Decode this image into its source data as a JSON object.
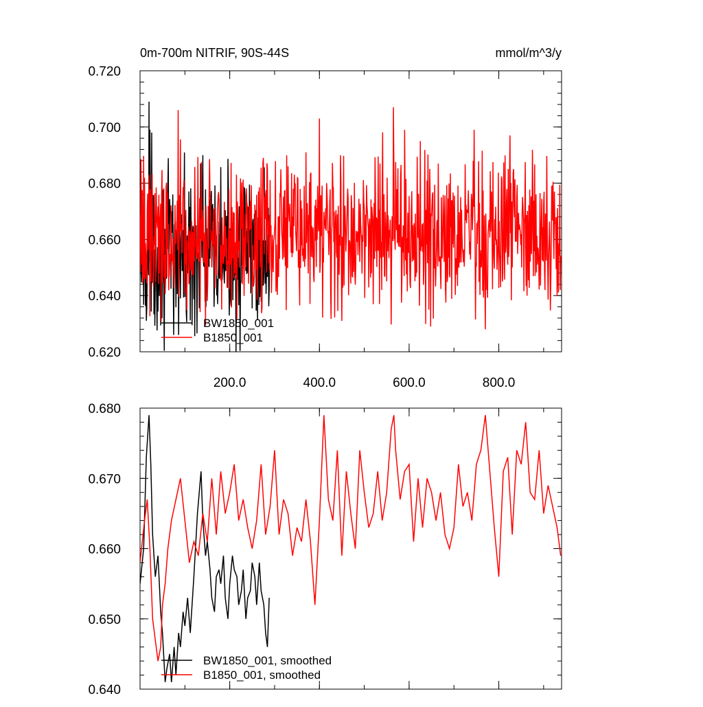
{
  "chart_data": [
    {
      "type": "line",
      "title": "0m-700m NITRIF, 90S-44S",
      "units": "mmol/m^3/y",
      "xlim": [
        0,
        940
      ],
      "ylim": [
        0.62,
        0.72
      ],
      "x_tick_labels": [
        "200.0",
        "400.0",
        "600.0",
        "800.0"
      ],
      "y_tick_labels": [
        "0.620",
        "0.640",
        "0.660",
        "0.680",
        "0.700",
        "0.720"
      ],
      "legend_position": "bottom-left",
      "grid": false,
      "series": [
        {
          "name": "BW1850_001",
          "color": "#000000",
          "length": 290,
          "mean": 0.655,
          "noise": 0.013,
          "extremes": [
            [
              20,
              0.709
            ],
            [
              22,
              0.699
            ],
            [
              26,
              0.698
            ],
            [
              75,
              0.626
            ],
            [
              86,
              0.626
            ],
            [
              135,
              0.687
            ],
            [
              140,
              0.69
            ],
            [
              165,
              0.636
            ]
          ]
        },
        {
          "name": "B1850_001",
          "color": "#ff0000",
          "length": 940,
          "mean": 0.662,
          "noise": 0.013,
          "extremes": [
            [
              85,
              0.706
            ],
            [
              275,
              0.689
            ],
            [
              330,
              0.686
            ],
            [
              370,
              0.691
            ],
            [
              400,
              0.703
            ],
            [
              425,
              0.641
            ],
            [
              450,
              0.631
            ],
            [
              565,
              0.707
            ],
            [
              590,
              0.699
            ],
            [
              625,
              0.695
            ],
            [
              665,
              0.687
            ],
            [
              745,
              0.699
            ],
            [
              770,
              0.628
            ],
            [
              825,
              0.697
            ]
          ]
        }
      ]
    },
    {
      "type": "line",
      "title": "",
      "xlim": [
        0,
        940
      ],
      "ylim": [
        0.64,
        0.68
      ],
      "x_tick_labels": [],
      "y_tick_labels": [
        "0.640",
        "0.650",
        "0.660",
        "0.670",
        "0.680"
      ],
      "legend_position": "bottom-left",
      "grid": false,
      "series": [
        {
          "name": "BW1850_001, smoothed",
          "color": "#000000",
          "x": [
            0,
            8,
            14,
            20,
            24,
            28,
            34,
            40,
            46,
            50,
            56,
            60,
            66,
            70,
            76,
            80,
            86,
            90,
            96,
            100,
            106,
            112,
            120,
            128,
            136,
            140,
            146,
            150,
            156,
            160,
            166,
            170,
            176,
            180,
            186,
            190,
            196,
            200,
            206,
            210,
            216,
            220,
            226,
            230,
            236,
            240,
            246,
            250,
            256,
            260,
            266,
            270,
            276,
            280,
            284,
            288
          ],
          "y": [
            0.655,
            0.66,
            0.673,
            0.679,
            0.672,
            0.662,
            0.656,
            0.659,
            0.651,
            0.648,
            0.641,
            0.643,
            0.645,
            0.641,
            0.646,
            0.642,
            0.648,
            0.646,
            0.651,
            0.649,
            0.653,
            0.648,
            0.656,
            0.665,
            0.671,
            0.664,
            0.659,
            0.661,
            0.657,
            0.653,
            0.651,
            0.656,
            0.657,
            0.655,
            0.659,
            0.653,
            0.65,
            0.655,
            0.659,
            0.657,
            0.656,
            0.652,
            0.654,
            0.657,
            0.65,
            0.653,
            0.654,
            0.658,
            0.656,
            0.652,
            0.658,
            0.654,
            0.652,
            0.648,
            0.646,
            0.653
          ]
        },
        {
          "name": "B1850_001, smoothed",
          "color": "#ff0000",
          "x": [
            0,
            10,
            16,
            22,
            28,
            34,
            40,
            46,
            50,
            56,
            62,
            70,
            80,
            90,
            100,
            110,
            120,
            130,
            140,
            150,
            160,
            170,
            180,
            190,
            200,
            210,
            220,
            230,
            240,
            250,
            260,
            270,
            280,
            290,
            300,
            310,
            320,
            330,
            340,
            350,
            360,
            370,
            380,
            390,
            400,
            410,
            420,
            430,
            440,
            450,
            460,
            470,
            480,
            490,
            500,
            510,
            520,
            530,
            540,
            550,
            560,
            566,
            570,
            580,
            590,
            600,
            610,
            620,
            630,
            640,
            650,
            660,
            670,
            680,
            690,
            700,
            710,
            720,
            730,
            740,
            750,
            760,
            770,
            780,
            790,
            800,
            810,
            820,
            830,
            840,
            850,
            860,
            870,
            880,
            890,
            900,
            910,
            920,
            930,
            938
          ],
          "y": [
            0.658,
            0.664,
            0.667,
            0.66,
            0.65,
            0.647,
            0.644,
            0.646,
            0.652,
            0.655,
            0.66,
            0.664,
            0.667,
            0.67,
            0.664,
            0.658,
            0.661,
            0.659,
            0.665,
            0.661,
            0.67,
            0.662,
            0.671,
            0.665,
            0.668,
            0.672,
            0.664,
            0.667,
            0.663,
            0.66,
            0.664,
            0.672,
            0.662,
            0.666,
            0.674,
            0.662,
            0.667,
            0.665,
            0.659,
            0.663,
            0.661,
            0.667,
            0.661,
            0.652,
            0.664,
            0.679,
            0.667,
            0.664,
            0.674,
            0.659,
            0.671,
            0.665,
            0.66,
            0.674,
            0.668,
            0.663,
            0.665,
            0.671,
            0.664,
            0.668,
            0.677,
            0.679,
            0.674,
            0.667,
            0.671,
            0.672,
            0.661,
            0.67,
            0.663,
            0.67,
            0.668,
            0.664,
            0.668,
            0.662,
            0.66,
            0.663,
            0.672,
            0.666,
            0.668,
            0.664,
            0.672,
            0.674,
            0.679,
            0.671,
            0.663,
            0.656,
            0.671,
            0.673,
            0.662,
            0.674,
            0.672,
            0.678,
            0.668,
            0.667,
            0.674,
            0.665,
            0.669,
            0.666,
            0.663,
            0.659
          ]
        }
      ]
    }
  ]
}
